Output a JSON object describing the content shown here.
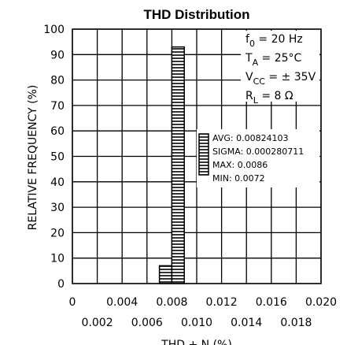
{
  "chart_data": {
    "type": "histogram",
    "title": "THD Distribution",
    "xlabel": "THD + N (%)",
    "ylabel": "RELATIVE FREQUENCY (%)",
    "bins": [
      0.007,
      0.008,
      0.009
    ],
    "values": [
      7,
      93
    ],
    "color": "#000000",
    "xlim": [
      0,
      0.02
    ],
    "xticks": [
      0,
      0.002,
      0.004,
      0.006,
      0.008,
      {
        "value": 0.01,
        "label": "0.010"
      },
      0.012,
      0.014,
      0.016,
      0.018,
      {
        "value": 0.02,
        "label": "0.020"
      }
    ],
    "ylim": [
      0,
      100
    ],
    "yticks": [
      0,
      10,
      20,
      30,
      40,
      50,
      60,
      70,
      80,
      90,
      100
    ],
    "grid": true,
    "conditions": [
      [
        "f",
        "0",
        " = 20 Hz"
      ],
      [
        "T",
        "A",
        " = 25°C"
      ],
      [
        "V",
        "CC",
        " = ± 35V"
      ],
      [
        "R",
        "L",
        "  =  8 Ω"
      ]
    ],
    "stats": [
      "AVG: 0.00824103",
      "SIGMA: 0.000280711",
      "MAX: 0.0086",
      "MIN: 0.0072"
    ]
  }
}
